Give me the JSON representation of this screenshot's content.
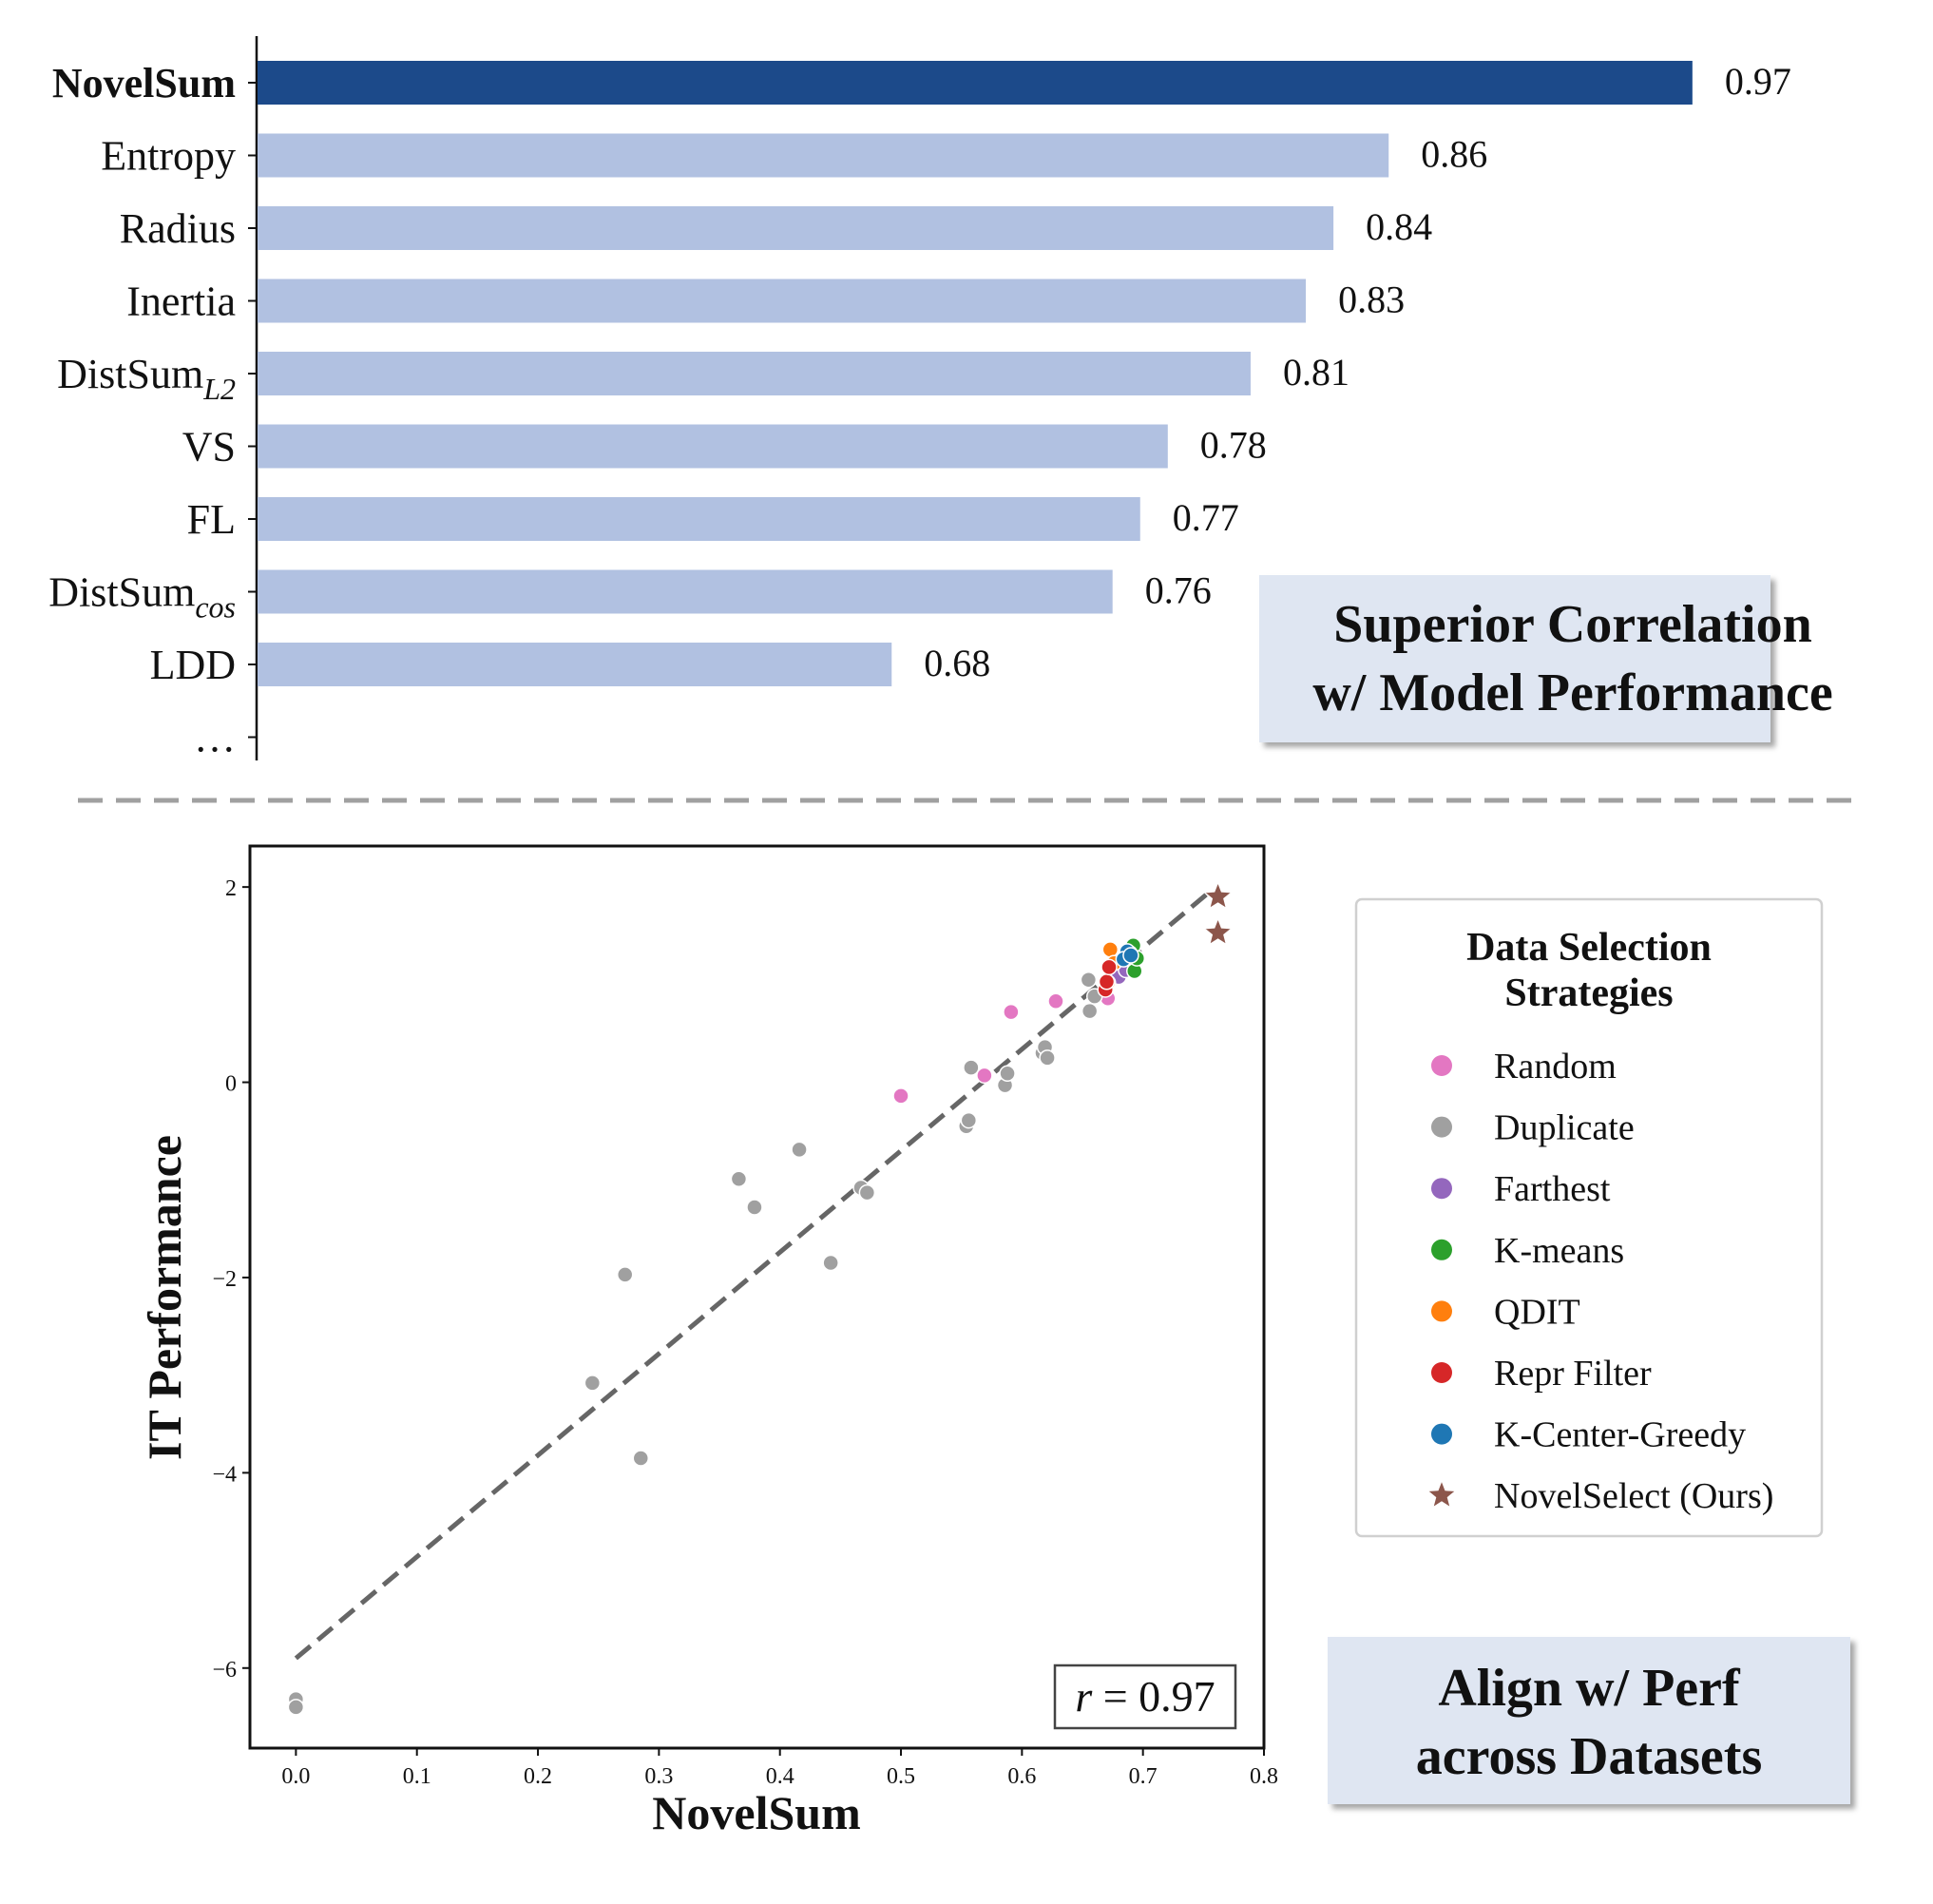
{
  "chart_data": [
    {
      "type": "bar",
      "orientation": "horizontal",
      "title": "",
      "categories": [
        {
          "main": "NovelSum",
          "sub": ""
        },
        {
          "main": "Entropy",
          "sub": ""
        },
        {
          "main": "Radius",
          "sub": ""
        },
        {
          "main": "Inertia",
          "sub": ""
        },
        {
          "main": "DistSum",
          "sub": "L2"
        },
        {
          "main": "VS",
          "sub": ""
        },
        {
          "main": "FL",
          "sub": ""
        },
        {
          "main": "DistSum",
          "sub": "cos"
        },
        {
          "main": "LDD",
          "sub": ""
        },
        {
          "main": "…",
          "sub": ""
        }
      ],
      "values": [
        0.97,
        0.86,
        0.84,
        0.83,
        0.81,
        0.78,
        0.77,
        0.76,
        0.68,
        null
      ],
      "value_labels": [
        "0.97",
        "0.86",
        "0.84",
        "0.83",
        "0.81",
        "0.78",
        "0.77",
        "0.76",
        "0.68",
        ""
      ],
      "highlight_index": 0,
      "xlim": [
        0.45,
        1.0
      ],
      "colors": {
        "highlight": "#1c4a8a",
        "default": "#b1c1e1"
      },
      "callout": {
        "line1": "Superior Correlation",
        "line2": "w/ Model Performance"
      }
    },
    {
      "type": "scatter",
      "xlabel": "NovelSum",
      "ylabel": "IT Performance",
      "xlim": [
        -0.038,
        0.8
      ],
      "ylim": [
        -6.82,
        2.42
      ],
      "xticks": [
        "0.0",
        "0.1",
        "0.2",
        "0.3",
        "0.4",
        "0.5",
        "0.6",
        "0.7",
        "0.8"
      ],
      "xtick_values": [
        0.0,
        0.1,
        0.2,
        0.3,
        0.4,
        0.5,
        0.6,
        0.7,
        0.8
      ],
      "yticks": [
        "−6",
        "−4",
        "−2",
        "0",
        "2"
      ],
      "ytick_values": [
        -6,
        -4,
        -2,
        0,
        2
      ],
      "fit_line": {
        "x": [
          0.0,
          0.755
        ],
        "y": [
          -5.9,
          1.95
        ],
        "color": "#666666"
      },
      "annotation": {
        "r_symbol": "r",
        "text": " = 0.97"
      },
      "legend": {
        "title_line1": "Data Selection",
        "title_line2": "Strategies",
        "position": "right"
      },
      "series": [
        {
          "name": "Random",
          "marker": "circle",
          "color": "#e377c2",
          "points": [
            [
              0.591,
              0.72
            ],
            [
              0.628,
              0.83
            ],
            [
              0.5,
              -0.14
            ],
            [
              0.569,
              0.07
            ],
            [
              0.671,
              0.86
            ],
            [
              0.686,
              1.2
            ]
          ]
        },
        {
          "name": "Duplicate",
          "marker": "circle",
          "color": "#a0a0a0",
          "points": [
            [
              0.0,
              -6.32
            ],
            [
              0.0,
              -6.4
            ],
            [
              0.245,
              -3.08
            ],
            [
              0.272,
              -1.97
            ],
            [
              0.285,
              -3.85
            ],
            [
              0.366,
              -0.99
            ],
            [
              0.379,
              -1.28
            ],
            [
              0.416,
              -0.69
            ],
            [
              0.442,
              -1.85
            ],
            [
              0.467,
              -1.08
            ],
            [
              0.472,
              -1.13
            ],
            [
              0.554,
              -0.45
            ],
            [
              0.556,
              -0.39
            ],
            [
              0.558,
              0.15
            ],
            [
              0.586,
              -0.03
            ],
            [
              0.588,
              0.09
            ],
            [
              0.617,
              0.3
            ],
            [
              0.619,
              0.36
            ],
            [
              0.621,
              0.25
            ],
            [
              0.655,
              1.05
            ],
            [
              0.656,
              0.73
            ],
            [
              0.66,
              0.88
            ]
          ]
        },
        {
          "name": "Farthest",
          "marker": "circle",
          "color": "#9467bd",
          "points": [
            [
              0.68,
              1.08
            ],
            [
              0.686,
              1.15
            ]
          ]
        },
        {
          "name": "K-means",
          "marker": "circle",
          "color": "#2ca02c",
          "points": [
            [
              0.692,
              1.4
            ],
            [
              0.693,
              1.14
            ],
            [
              0.695,
              1.27
            ],
            [
              0.689,
              1.32
            ]
          ]
        },
        {
          "name": "QDIT",
          "marker": "circle",
          "color": "#ff7f0e",
          "points": [
            [
              0.673,
              1.36
            ],
            [
              0.671,
              1.02
            ],
            [
              0.676,
              1.22
            ]
          ]
        },
        {
          "name": "Repr Filter",
          "marker": "circle",
          "color": "#d62728",
          "points": [
            [
              0.669,
              0.95
            ],
            [
              0.67,
              1.03
            ],
            [
              0.672,
              1.18
            ]
          ]
        },
        {
          "name": "K-Center-Greedy",
          "marker": "circle",
          "color": "#1f77b4",
          "points": [
            [
              0.687,
              1.34
            ],
            [
              0.684,
              1.26
            ],
            [
              0.69,
              1.3
            ]
          ]
        },
        {
          "name": "NovelSelect (Ours)",
          "marker": "star",
          "color": "#8c564b",
          "points": [
            [
              0.762,
              1.9
            ],
            [
              0.762,
              1.53
            ]
          ]
        }
      ],
      "callout": {
        "line1": "Align w/ Perf",
        "line2": "across Datasets"
      }
    }
  ]
}
